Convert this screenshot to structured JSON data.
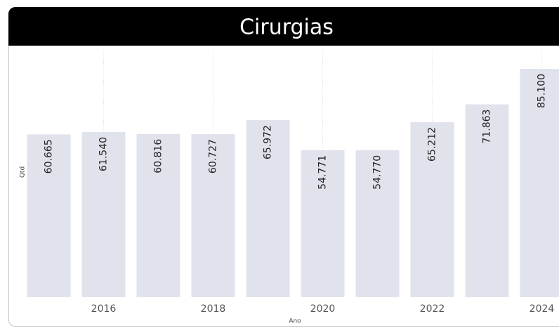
{
  "chart_data": {
    "type": "bar",
    "title": "Cirurgias",
    "x_label": "Ano",
    "y_label": "Qtd",
    "categories": [
      null,
      "2016",
      null,
      "2018",
      null,
      "2020",
      null,
      "2022",
      null,
      "2024"
    ],
    "values": [
      60665,
      61540,
      60816,
      60727,
      65972,
      54771,
      54770,
      65212,
      71863,
      85100
    ],
    "value_labels": [
      "60.665",
      "61.540",
      "60.816",
      "60.727",
      "65.972",
      "54.771",
      "54.770",
      "65.212",
      "71.863",
      "85.100"
    ],
    "color": "#e1e3ec"
  }
}
